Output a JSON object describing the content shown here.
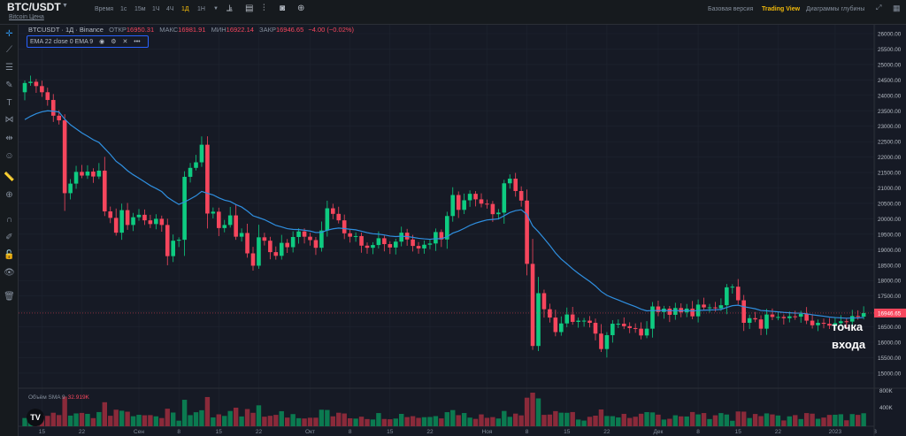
{
  "header": {
    "symbol": "BTC/USDT",
    "subtitle": "Bitcoin Цена",
    "timeframes": [
      {
        "label": "Время",
        "active": false
      },
      {
        "label": "1с",
        "active": false
      },
      {
        "label": "15м",
        "active": false
      },
      {
        "label": "1Ч",
        "active": false
      },
      {
        "label": "4Ч",
        "active": false
      },
      {
        "label": "1Д",
        "active": true
      },
      {
        "label": "1Н",
        "active": false
      }
    ],
    "tools": [
      "chart-type-icon",
      "indicators-icon",
      "compare-icon",
      "camera-icon",
      "add-icon"
    ],
    "views": [
      {
        "label": "Базовая версия",
        "active": false
      },
      {
        "label": "Trading View",
        "active": true
      },
      {
        "label": "Диаграммы глубины",
        "active": false
      }
    ]
  },
  "left_toolbar": [
    "crosshair-icon",
    "trend-line-icon",
    "horizontal-lines-icon",
    "brush-icon",
    "text-icon",
    "pattern-icon",
    "measure-icon",
    "emoji-icon",
    "ruler-icon",
    "zoom-in-icon",
    "magnet-icon",
    "lock-drawing-icon",
    "unlock-icon",
    "eye-icon",
    "trash-icon"
  ],
  "legend": {
    "title": "BTCUSDT · 1Д · Binance",
    "open_label": "ОТКР",
    "open": "16950.31",
    "high_label": "МАКС",
    "high": "16981.91",
    "low_label": "МИН",
    "low": "16922.14",
    "close_label": "ЗАКР",
    "close": "16946.65",
    "change": "−4.00 (−0.02%)"
  },
  "indicator": {
    "label": "EMA 22 close 0 EMA 9"
  },
  "volume": {
    "label": "Объём SMA 9",
    "value": "32.919K",
    "axis": [
      "800K",
      "400K"
    ]
  },
  "annotation": "точка\nвхода",
  "colors": {
    "up": "#0ecb81",
    "down": "#f6465d",
    "ema": "#2f8fe0",
    "accent": "#f0b90b",
    "background": "#161a25"
  },
  "chart_data": {
    "type": "candlestick",
    "interval": "1D",
    "start_date": "2022-08-12",
    "price_axis": {
      "range": [
        15000,
        26000
      ],
      "step": 500
    },
    "current_price": "16946.65",
    "x_tick_labels": [
      {
        "label": "15",
        "date": "2022-08-15"
      },
      {
        "label": "22",
        "date": "2022-08-22"
      },
      {
        "label": "Сен",
        "date": "2022-09-01"
      },
      {
        "label": "8",
        "date": "2022-09-08"
      },
      {
        "label": "15",
        "date": "2022-09-15"
      },
      {
        "label": "22",
        "date": "2022-09-22"
      },
      {
        "label": "Окт",
        "date": "2022-10-01"
      },
      {
        "label": "8",
        "date": "2022-10-08"
      },
      {
        "label": "15",
        "date": "2022-10-15"
      },
      {
        "label": "22",
        "date": "2022-10-22"
      },
      {
        "label": "Ноя",
        "date": "2022-11-01"
      },
      {
        "label": "8",
        "date": "2022-11-08"
      },
      {
        "label": "15",
        "date": "2022-11-15"
      },
      {
        "label": "22",
        "date": "2022-11-22"
      },
      {
        "label": "Дек",
        "date": "2022-12-01"
      },
      {
        "label": "8",
        "date": "2022-12-08"
      },
      {
        "label": "15",
        "date": "2022-12-15"
      },
      {
        "label": "22",
        "date": "2022-12-22"
      },
      {
        "label": "2023",
        "date": "2023-01-01"
      },
      {
        "label": "8",
        "date": "2023-01-08"
      }
    ],
    "first_open": 24100,
    "closes": [
      24400,
      24440,
      24300,
      24100,
      23850,
      23340,
      23190,
      20830,
      21140,
      21520,
      21400,
      21530,
      21370,
      21560,
      20240,
      20030,
      19550,
      20280,
      19800,
      20050,
      20130,
      19950,
      19830,
      20000,
      19800,
      18790,
      19290,
      19320,
      21360,
      21650,
      21830,
      22400,
      20170,
      20230,
      19700,
      19800,
      20110,
      19420,
      19540,
      18880,
      18480,
      19400,
      19290,
      18920,
      18800,
      19220,
      19080,
      19410,
      19590,
      19420,
      19310,
      19060,
      19620,
      20340,
      20160,
      19950,
      19530,
      19420,
      19440,
      19130,
      19060,
      19150,
      19370,
      19180,
      19070,
      19260,
      19550,
      19330,
      19120,
      19040,
      19160,
      19200,
      19570,
      19330,
      20090,
      20770,
      20290,
      20600,
      20810,
      20630,
      20490,
      20480,
      20150,
      20200,
      21150,
      21300,
      20900,
      20590,
      18540,
      15880,
      17590,
      17070,
      16800,
      16330,
      16610,
      16900,
      16660,
      16700,
      16700,
      16630,
      16280,
      15780,
      16230,
      16600,
      16600,
      16520,
      16460,
      16440,
      16220,
      16440,
      17160,
      16980,
      17090,
      16890,
      17110,
      16970,
      17090,
      16840,
      17220,
      17130,
      17130,
      17100,
      17200,
      17780,
      17800,
      17360,
      16630,
      16780,
      16740,
      16440,
      16900,
      16820,
      16820,
      16780,
      16840,
      16830,
      16920,
      16700,
      16550,
      16630,
      16600,
      16540,
      16620,
      16680,
      16670,
      16850,
      16830,
      16946.65
    ],
    "indicators": [
      {
        "name": "EMA 22",
        "source": "close"
      }
    ]
  }
}
